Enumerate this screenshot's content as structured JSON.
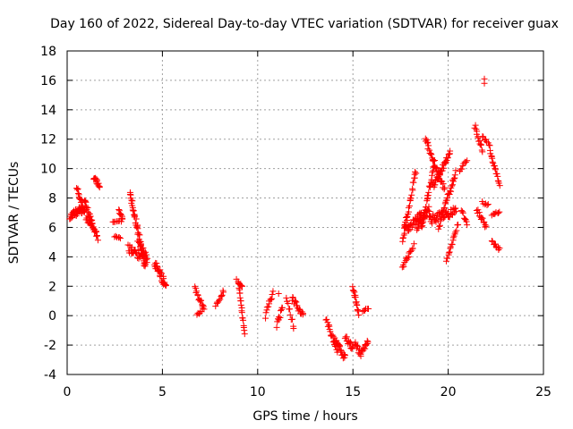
{
  "chart_data": {
    "type": "scatter",
    "title": "Day 160 of 2022, Sidereal Day-to-day VTEC variation (SDTVAR) for receiver guax",
    "xlabel": "GPS time / hours",
    "ylabel": "SDTVAR / TECUs",
    "xlim": [
      0,
      25
    ],
    "ylim": [
      -4,
      18
    ],
    "xticks": [
      0,
      5,
      10,
      15,
      20,
      25
    ],
    "yticks": [
      -4,
      -2,
      0,
      2,
      4,
      6,
      8,
      10,
      12,
      14,
      16,
      18
    ],
    "grid": true,
    "marker": "+",
    "series_color": "#ff0000",
    "segments": [
      {
        "t0": 0.15,
        "t1": 0.9,
        "v0": 6.8,
        "v1": 7.3,
        "n": 40,
        "noise": 0.5
      },
      {
        "t0": 0.5,
        "t1": 0.9,
        "v0": 8.8,
        "v1": 7.0,
        "n": 16,
        "noise": 0.3
      },
      {
        "t0": 0.9,
        "t1": 1.6,
        "v0": 7.8,
        "v1": 5.2,
        "n": 35,
        "noise": 0.5
      },
      {
        "t0": 1.4,
        "t1": 1.7,
        "v0": 9.4,
        "v1": 8.8,
        "n": 14,
        "noise": 0.3
      },
      {
        "t0": 1.0,
        "t1": 1.3,
        "v0": 6.6,
        "v1": 6.2,
        "n": 10,
        "noise": 0.3
      },
      {
        "t0": 2.4,
        "t1": 2.9,
        "v0": 6.4,
        "v1": 6.5,
        "n": 8,
        "noise": 0.2
      },
      {
        "t0": 2.7,
        "t1": 2.9,
        "v0": 7.2,
        "v1": 6.6,
        "n": 8,
        "noise": 0.2
      },
      {
        "t0": 2.5,
        "t1": 2.8,
        "v0": 5.4,
        "v1": 5.3,
        "n": 6,
        "noise": 0.1
      },
      {
        "t0": 3.3,
        "t1": 4.1,
        "v0": 8.4,
        "v1": 3.3,
        "n": 45,
        "noise": 0.5
      },
      {
        "t0": 3.2,
        "t1": 4.2,
        "v0": 4.6,
        "v1": 3.8,
        "n": 30,
        "noise": 0.6
      },
      {
        "t0": 3.7,
        "t1": 4.2,
        "v0": 5.2,
        "v1": 4.0,
        "n": 12,
        "noise": 0.3
      },
      {
        "t0": 4.6,
        "t1": 5.2,
        "v0": 3.6,
        "v1": 2.0,
        "n": 30,
        "noise": 0.6
      },
      {
        "t0": 6.7,
        "t1": 7.2,
        "v0": 1.8,
        "v1": 0.4,
        "n": 16,
        "noise": 0.4
      },
      {
        "t0": 6.8,
        "t1": 7.1,
        "v0": 0.0,
        "v1": 0.4,
        "n": 6,
        "noise": 0.2
      },
      {
        "t0": 7.8,
        "t1": 8.2,
        "v0": 0.6,
        "v1": 1.6,
        "n": 10,
        "noise": 0.3
      },
      {
        "t0": 9.0,
        "t1": 9.3,
        "v0": 2.3,
        "v1": -1.1,
        "n": 20,
        "noise": 0.3
      },
      {
        "t0": 8.9,
        "t1": 9.2,
        "v0": 2.4,
        "v1": 2.0,
        "n": 6,
        "noise": 0.2
      },
      {
        "t0": 10.4,
        "t1": 10.8,
        "v0": 0.0,
        "v1": 1.6,
        "n": 12,
        "noise": 0.4
      },
      {
        "t0": 11.0,
        "t1": 11.3,
        "v0": -0.7,
        "v1": 0.6,
        "n": 10,
        "noise": 0.4
      },
      {
        "t0": 11.5,
        "t1": 11.9,
        "v0": 1.2,
        "v1": -0.8,
        "n": 10,
        "noise": 0.3
      },
      {
        "t0": 11.8,
        "t1": 12.4,
        "v0": 1.2,
        "v1": 0.0,
        "n": 18,
        "noise": 0.4
      },
      {
        "t0": 13.6,
        "t1": 14.2,
        "v0": -0.3,
        "v1": -2.5,
        "n": 20,
        "noise": 0.4
      },
      {
        "t0": 14.0,
        "t1": 14.6,
        "v0": -1.6,
        "v1": -2.9,
        "n": 22,
        "noise": 0.5
      },
      {
        "t0": 14.6,
        "t1": 15.0,
        "v0": -1.5,
        "v1": -2.2,
        "n": 14,
        "noise": 0.4
      },
      {
        "t0": 15.0,
        "t1": 15.3,
        "v0": 2.0,
        "v1": 0.1,
        "n": 16,
        "noise": 0.3
      },
      {
        "t0": 15.1,
        "t1": 15.4,
        "v0": -1.8,
        "v1": -2.6,
        "n": 10,
        "noise": 0.4
      },
      {
        "t0": 15.4,
        "t1": 15.8,
        "v0": -2.6,
        "v1": -1.7,
        "n": 14,
        "noise": 0.4
      },
      {
        "t0": 15.5,
        "t1": 15.8,
        "v0": 0.3,
        "v1": 0.5,
        "n": 6,
        "noise": 0.1
      },
      {
        "t0": 17.6,
        "t1": 18.3,
        "v0": 5.2,
        "v1": 9.8,
        "n": 30,
        "noise": 0.5
      },
      {
        "t0": 17.6,
        "t1": 18.2,
        "v0": 3.2,
        "v1": 4.8,
        "n": 16,
        "noise": 0.4
      },
      {
        "t0": 17.7,
        "t1": 18.6,
        "v0": 5.8,
        "v1": 6.8,
        "n": 30,
        "noise": 0.6
      },
      {
        "t0": 18.3,
        "t1": 19.0,
        "v0": 6.0,
        "v1": 7.2,
        "n": 30,
        "noise": 0.6
      },
      {
        "t0": 18.6,
        "t1": 19.3,
        "v0": 6.0,
        "v1": 10.5,
        "n": 30,
        "noise": 0.4
      },
      {
        "t0": 18.8,
        "t1": 19.8,
        "v0": 12.0,
        "v1": 8.6,
        "n": 35,
        "noise": 0.4
      },
      {
        "t0": 19.0,
        "t1": 20.4,
        "v0": 6.5,
        "v1": 7.1,
        "n": 45,
        "noise": 0.6
      },
      {
        "t0": 19.2,
        "t1": 20.1,
        "v0": 8.8,
        "v1": 11.0,
        "n": 35,
        "noise": 0.4
      },
      {
        "t0": 19.5,
        "t1": 20.4,
        "v0": 6.0,
        "v1": 9.8,
        "n": 30,
        "noise": 0.4
      },
      {
        "t0": 19.9,
        "t1": 20.5,
        "v0": 3.6,
        "v1": 6.2,
        "n": 18,
        "noise": 0.3
      },
      {
        "t0": 20.6,
        "t1": 21.0,
        "v0": 9.8,
        "v1": 10.6,
        "n": 8,
        "noise": 0.2
      },
      {
        "t0": 20.7,
        "t1": 21.0,
        "v0": 7.2,
        "v1": 6.2,
        "n": 8,
        "noise": 0.3
      },
      {
        "t0": 21.4,
        "t1": 21.8,
        "v0": 12.9,
        "v1": 11.2,
        "n": 14,
        "noise": 0.4
      },
      {
        "t0": 21.5,
        "t1": 22.0,
        "v0": 7.2,
        "v1": 6.0,
        "n": 14,
        "noise": 0.4
      },
      {
        "t0": 21.8,
        "t1": 22.2,
        "v0": 12.2,
        "v1": 11.6,
        "n": 8,
        "noise": 0.2
      },
      {
        "t0": 21.8,
        "t1": 22.1,
        "v0": 7.7,
        "v1": 7.5,
        "n": 6,
        "noise": 0.2
      },
      {
        "t0": 22.2,
        "t1": 22.7,
        "v0": 11.2,
        "v1": 8.8,
        "n": 18,
        "noise": 0.3
      },
      {
        "t0": 22.3,
        "t1": 22.7,
        "v0": 6.8,
        "v1": 7.1,
        "n": 8,
        "noise": 0.2
      },
      {
        "t0": 22.3,
        "t1": 22.7,
        "v0": 5.0,
        "v1": 4.5,
        "n": 10,
        "noise": 0.2
      }
    ],
    "outliers": [
      {
        "x": 21.9,
        "y": 16.1
      },
      {
        "x": 21.9,
        "y": 15.8
      },
      {
        "x": 11.1,
        "y": 1.5
      },
      {
        "x": 8.2,
        "y": 1.6
      }
    ]
  }
}
